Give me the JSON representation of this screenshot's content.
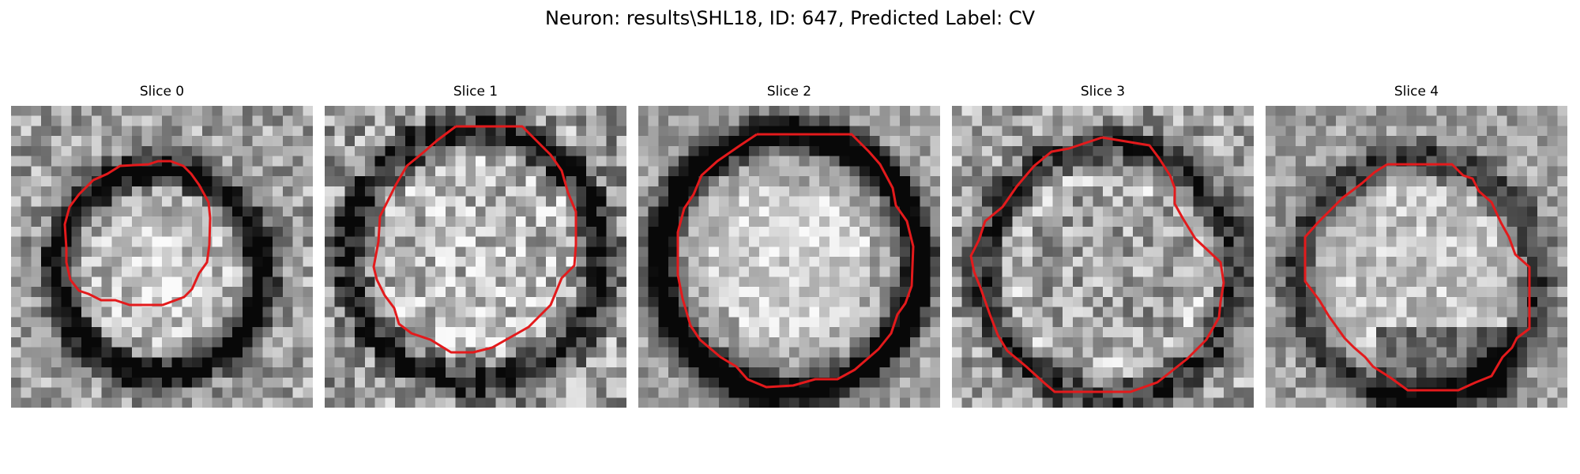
{
  "figure": {
    "title": "Neuron: results\\SHL18, ID: 647, Predicted Label: CV",
    "contour_color": "#e31a1c",
    "colormap": "gray",
    "slices": [
      {
        "label": "Slice 0",
        "mask_color": "#e31a1c"
      },
      {
        "label": "Slice 1",
        "mask_color": "#e31a1c"
      },
      {
        "label": "Slice 2",
        "mask_color": "#e31a1c"
      },
      {
        "label": "Slice 3",
        "mask_color": "#e31a1c"
      },
      {
        "label": "Slice 4",
        "mask_color": "#e31a1c"
      }
    ]
  }
}
